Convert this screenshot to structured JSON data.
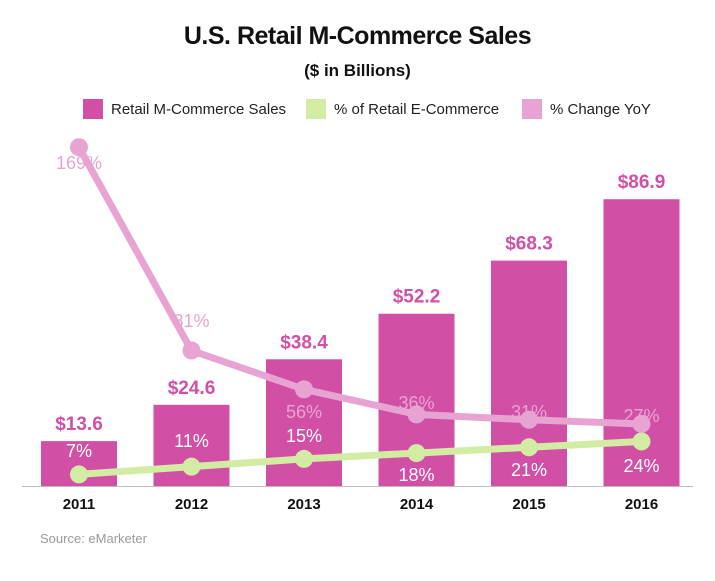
{
  "title": "U.S. Retail M-Commerce Sales",
  "subtitle": "($ in Billions)",
  "source": "Source: eMarketer",
  "colors": {
    "bar": "#d24fa6",
    "share_line": "#d2eca4",
    "yoy_line": "#e7a4d3",
    "bar_label": "#d24fa6",
    "yoy_label": "#e7a4d3",
    "share_label": "#ffffff"
  },
  "legend": [
    {
      "name": "Retail M-Commerce Sales",
      "color": "#d24fa6"
    },
    {
      "name": "% of Retail E-Commerce",
      "color": "#d2eca4"
    },
    {
      "name": "% Change YoY",
      "color": "#e7a4d3"
    }
  ],
  "chart_data": {
    "type": "bar",
    "title": "U.S. Retail M-Commerce Sales",
    "subtitle": "($ in Billions)",
    "categories": [
      "2011",
      "2012",
      "2013",
      "2014",
      "2015",
      "2016"
    ],
    "series": [
      {
        "name": "Retail M-Commerce Sales",
        "type": "bar",
        "values": [
          13.6,
          24.6,
          38.4,
          52.2,
          68.3,
          86.9
        ],
        "labels": [
          "$13.6",
          "$24.6",
          "$38.4",
          "$52.2",
          "$68.3",
          "$86.9"
        ]
      },
      {
        "name": "% of Retail E-Commerce",
        "type": "line",
        "values": [
          7,
          11,
          15,
          18,
          21,
          24
        ],
        "labels": [
          "7%",
          "11%",
          "15%",
          "18%",
          "21%",
          "24%"
        ]
      },
      {
        "name": "% Change YoY",
        "type": "line",
        "values": [
          169,
          81,
          56,
          36,
          31,
          27
        ],
        "labels": [
          "169%",
          "81%",
          "56%",
          "36%",
          "31%",
          "27%"
        ]
      }
    ],
    "legend_position": "top",
    "grid": false
  }
}
